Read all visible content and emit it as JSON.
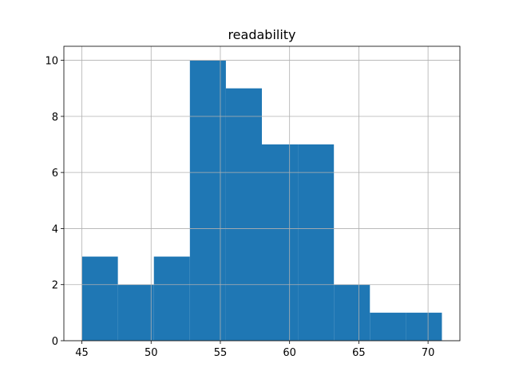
{
  "chart_data": {
    "type": "histogram",
    "title": "readability",
    "bins": [
      45,
      47.6,
      50.2,
      52.8,
      55.4,
      58,
      60.6,
      63.2,
      65.8,
      68.4,
      71
    ],
    "values": [
      3,
      2,
      3,
      10,
      9,
      7,
      7,
      2,
      1,
      1
    ],
    "color": "#1f77b4",
    "xlim": [
      43.7,
      72.3
    ],
    "xticks": [
      45,
      50,
      55,
      60,
      65,
      70
    ],
    "ylim": [
      0,
      10.5
    ],
    "yticks": [
      0,
      2,
      4,
      6,
      8,
      10
    ],
    "grid": true
  }
}
